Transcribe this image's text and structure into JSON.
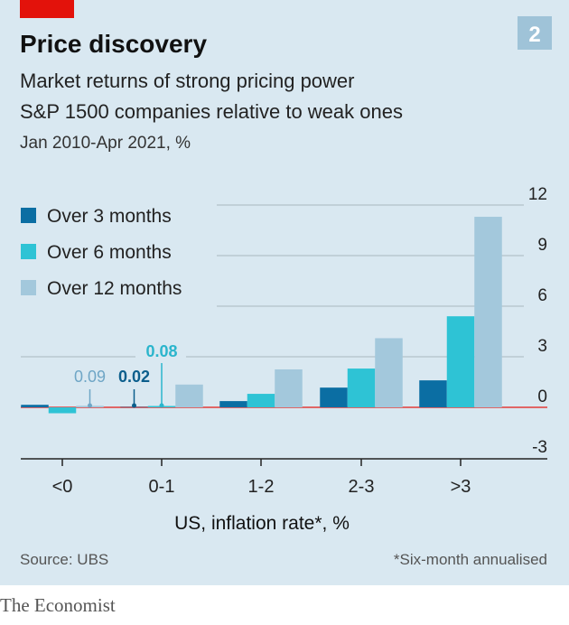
{
  "colors": {
    "background": "#d9e8f1",
    "accent_red": "#e3120b",
    "zero_line": "#e06666",
    "grid": "#b9c7cf",
    "over_3_months": "#0b6ea3",
    "over_6_months": "#2ec3d5",
    "over_12_months": "#a3c8dc"
  },
  "header": {
    "title": "Price discovery",
    "subtitle_line1": "Market returns of strong pricing power",
    "subtitle_line2": "S&P 1500 companies relative to weak ones",
    "period": "Jan 2010-Apr 2021, %",
    "chart_number": "2"
  },
  "footer": {
    "source": "Source: UBS",
    "footnote": "*Six-month annualised",
    "brand": "The Economist"
  },
  "chart_data": {
    "type": "bar",
    "title": "Price discovery",
    "xlabel": "US, inflation rate*, %",
    "ylabel": "",
    "categories": [
      "<0",
      "0-1",
      "1-2",
      "2-3",
      ">3"
    ],
    "ylim": [
      -3,
      12
    ],
    "yticks": [
      12,
      9,
      6,
      3,
      0,
      -3
    ],
    "y_axis_side": "right",
    "grid": true,
    "legend_placement": "top-left",
    "series": [
      {
        "name": "Over 3 months",
        "values": [
          0.15,
          0.02,
          0.37,
          1.17,
          1.6
        ]
      },
      {
        "name": "Over 6 months",
        "values": [
          -0.35,
          0.08,
          0.8,
          2.3,
          5.4
        ]
      },
      {
        "name": "Over 12 months",
        "values": [
          0.09,
          1.35,
          2.25,
          4.1,
          11.3
        ]
      }
    ],
    "annotations": [
      {
        "text": "0.09",
        "category": "<0",
        "series": "Over 12 months"
      },
      {
        "text": "0.02",
        "category": "0-1",
        "series": "Over 3 months"
      },
      {
        "text": "0.08",
        "category": "0-1",
        "series": "Over 6 months"
      }
    ]
  }
}
